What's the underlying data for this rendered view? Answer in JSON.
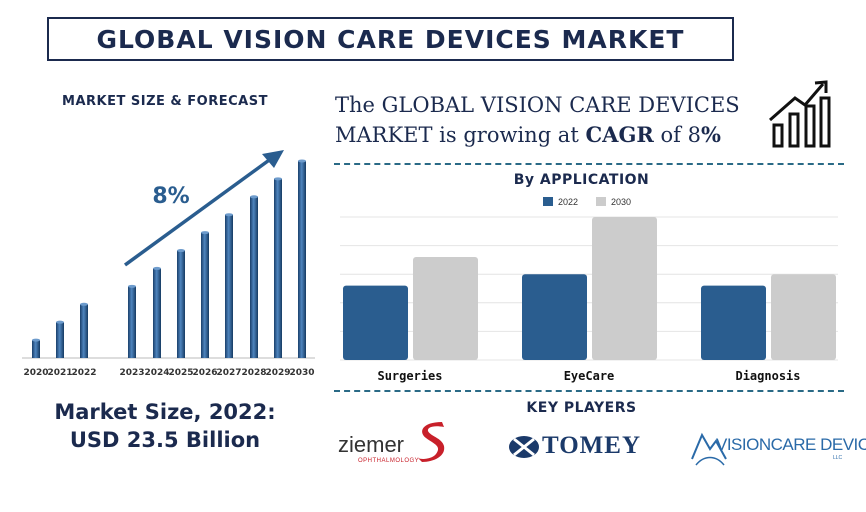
{
  "title": "GLOBAL VISION CARE DEVICES MARKET",
  "left_heading": "MARKET SIZE & FORECAST",
  "cagr": {
    "line1": "The GLOBAL VISION CARE DEVICES",
    "line2_prefix": "MARKET is growing at ",
    "line2_bold": "CAGR",
    "line2_mid": " of 8",
    "line2_end": "%"
  },
  "market_size": {
    "line1": "Market Size, 2022:",
    "line2": "USD 23.5 Billion"
  },
  "key_players_heading": "KEY PLAYERS",
  "key_players": [
    {
      "name": "ziemer",
      "sub": "OPHTHALMOLOGY"
    },
    {
      "name": "TOMEY"
    },
    {
      "name": "VISIONCARE DEVICES",
      "sub": "LLC"
    }
  ],
  "colors": {
    "navy": "#1b2a4e",
    "bar_blue": "#2a5d8f",
    "bar_grey": "#cccccc",
    "dash": "#2a6a86",
    "ziemer_red": "#c8202a"
  },
  "icons": [
    "growth-chart-icon",
    "trend-arrow-icon"
  ],
  "chart_data": [
    {
      "type": "bar",
      "title": "",
      "annotation": "8%",
      "categories": [
        "2020",
        "2021",
        "2022",
        "2023",
        "2024",
        "2025",
        "2026",
        "2027",
        "2028",
        "2029",
        "2030"
      ],
      "values": [
        1,
        2,
        3,
        4,
        5,
        6,
        7,
        8,
        9,
        10,
        11
      ],
      "ylim": [
        0,
        11.5
      ],
      "grid": false
    },
    {
      "type": "bar",
      "title": "By APPLICATION",
      "categories": [
        "Surgeries",
        "EyeCare",
        "Diagnosis"
      ],
      "series": [
        {
          "name": "2022",
          "values": [
            2.6,
            3.0,
            2.6
          ]
        },
        {
          "name": "2030",
          "values": [
            3.6,
            5.0,
            3.0
          ]
        }
      ],
      "ylim": [
        0,
        5
      ],
      "grid": true,
      "legend": "top-center"
    }
  ]
}
